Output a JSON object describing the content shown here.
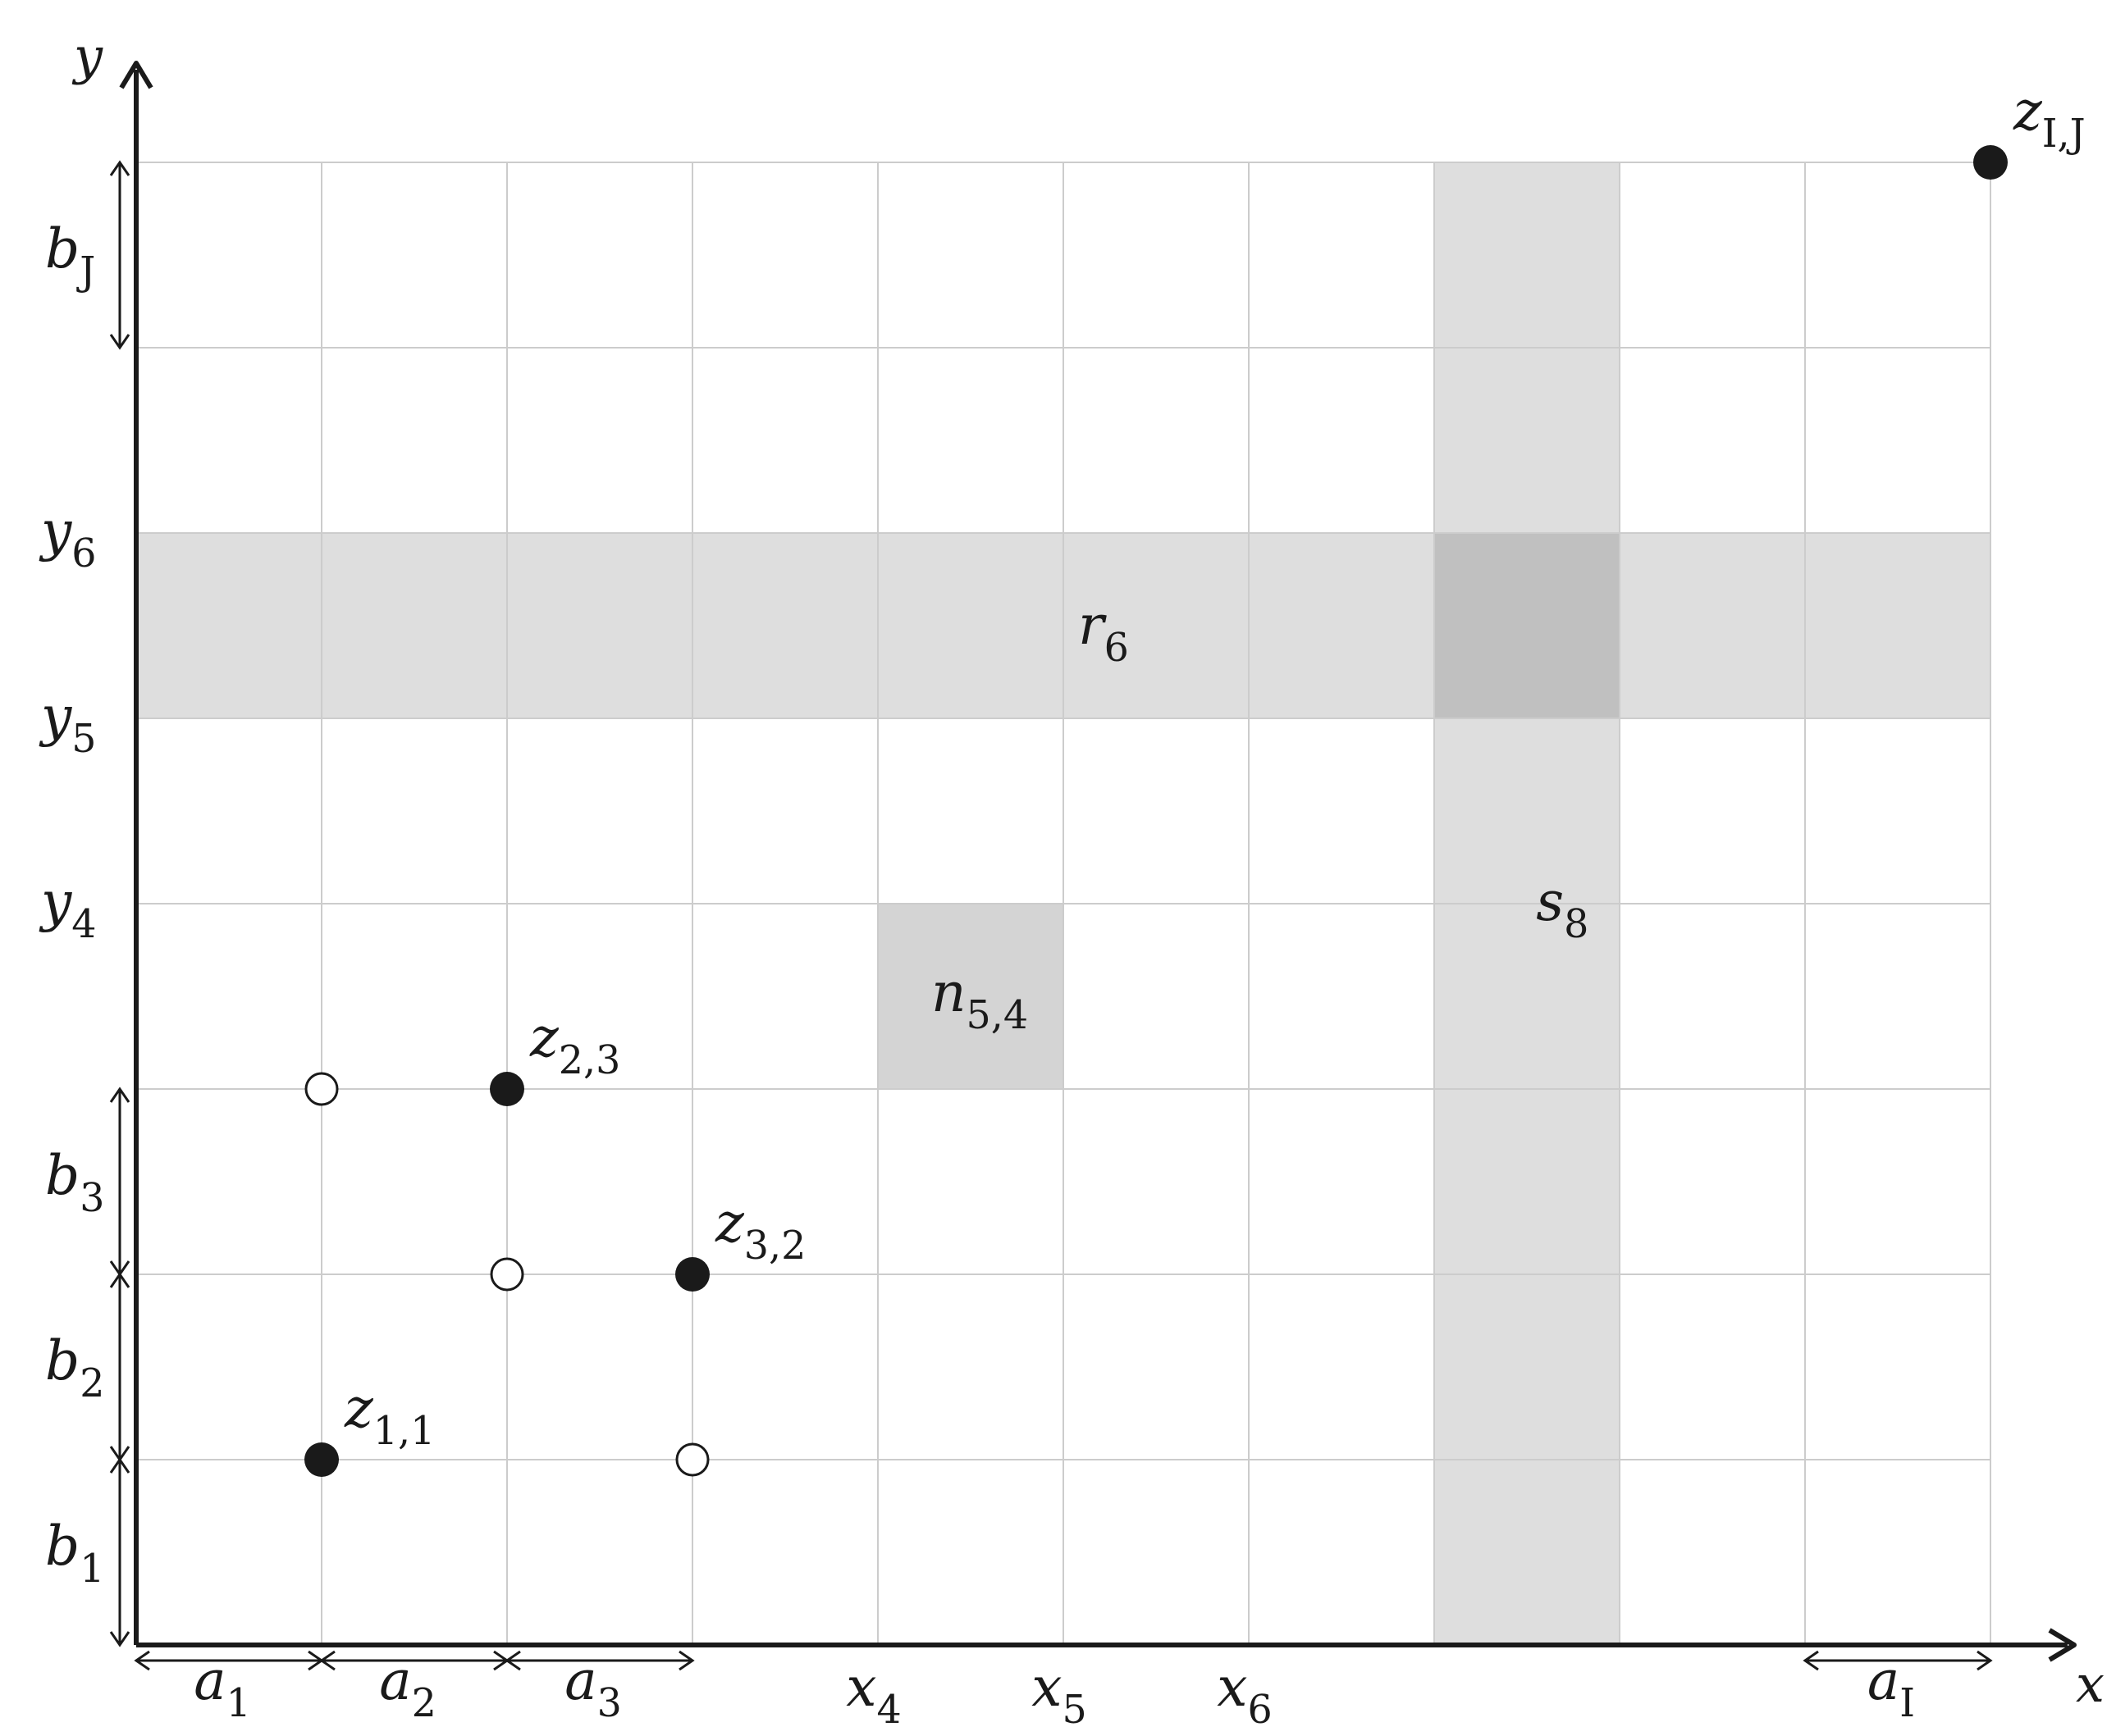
{
  "axes": {
    "x_label": "x",
    "y_label": "y"
  },
  "grid": {
    "columns": 10,
    "rows": 8,
    "line_color": "#cccccc"
  },
  "x_ticks": [
    {
      "text": "x",
      "sub": "4",
      "col": 4
    },
    {
      "text": "x",
      "sub": "5",
      "col": 5
    },
    {
      "text": "x",
      "sub": "6",
      "col": 6
    }
  ],
  "y_ticks": [
    {
      "text": "y",
      "sub": "4",
      "row": 4
    },
    {
      "text": "y",
      "sub": "5",
      "row": 5
    },
    {
      "text": "y",
      "sub": "6",
      "row": 6
    }
  ],
  "widths": [
    {
      "text": "a",
      "sub": "1",
      "from": 0,
      "to": 1
    },
    {
      "text": "a",
      "sub": "2",
      "from": 1,
      "to": 2
    },
    {
      "text": "a",
      "sub": "3",
      "from": 2,
      "to": 3
    },
    {
      "text": "a",
      "sub": "I",
      "from": 9,
      "to": 10
    }
  ],
  "heights": [
    {
      "text": "b",
      "sub": "1",
      "from": 0,
      "to": 1
    },
    {
      "text": "b",
      "sub": "2",
      "from": 1,
      "to": 2
    },
    {
      "text": "b",
      "sub": "3",
      "from": 2,
      "to": 3
    },
    {
      "text": "b",
      "sub": "J",
      "from": 7,
      "to": 8
    }
  ],
  "shaded": {
    "row": {
      "text": "r",
      "sub": "6",
      "row_from": 5,
      "row_to": 6,
      "color": "#dedede"
    },
    "column": {
      "text": "s",
      "sub": "8",
      "col_from": 7,
      "col_to": 8,
      "color": "#dedede"
    },
    "overlap_color": "#c0c0c0",
    "cell": {
      "text": "n",
      "sub": "5,4",
      "col_from": 4,
      "col_to": 5,
      "row_from": 3,
      "row_to": 4,
      "color": "#d4d4d4"
    }
  },
  "points": [
    {
      "col": 1,
      "row": 1,
      "filled": true,
      "text": "z",
      "sub": "1,1"
    },
    {
      "col": 3,
      "row": 2,
      "filled": true,
      "text": "z",
      "sub": "3,2"
    },
    {
      "col": 2,
      "row": 3,
      "filled": true,
      "text": "z",
      "sub": "2,3"
    },
    {
      "col": 10,
      "row": 8,
      "filled": true,
      "text": "z",
      "sub": "I,J"
    },
    {
      "col": 1,
      "row": 3,
      "filled": false
    },
    {
      "col": 2,
      "row": 2,
      "filled": false
    },
    {
      "col": 3,
      "row": 1,
      "filled": false
    }
  ]
}
